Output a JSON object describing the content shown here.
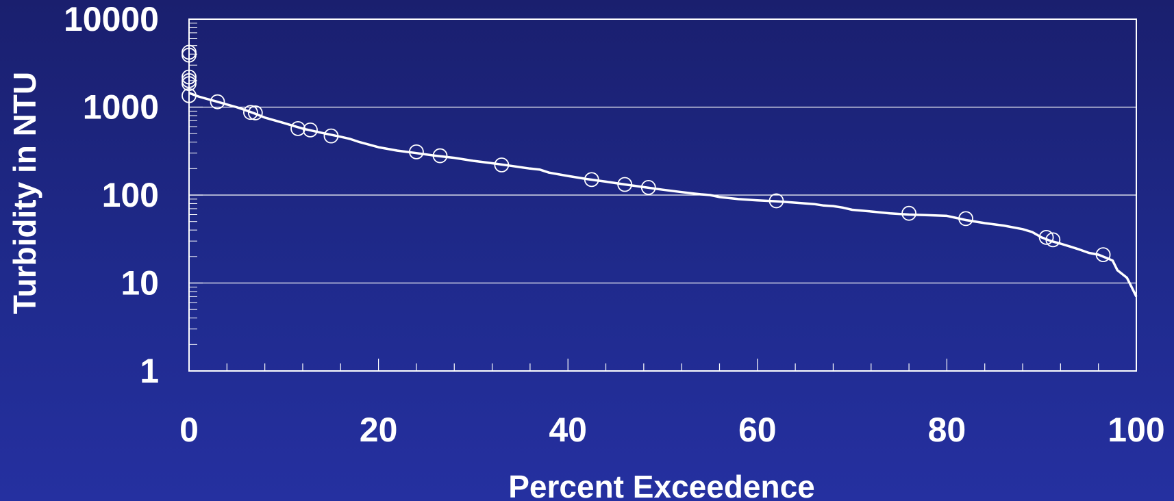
{
  "chart_data": {
    "type": "line",
    "xlabel": "Percent Exceedence",
    "ylabel": "Turbidity in NTU",
    "xlim": [
      0,
      100
    ],
    "ylim": [
      1,
      10000
    ],
    "y_scale": "log",
    "grid": "horizontal major lines",
    "colors": {
      "foreground": "#ffffff"
    },
    "x_ticks": [
      {
        "value": 0,
        "label": "0"
      },
      {
        "value": 20,
        "label": "20"
      },
      {
        "value": 40,
        "label": "40"
      },
      {
        "value": 60,
        "label": "60"
      },
      {
        "value": 80,
        "label": "80"
      },
      {
        "value": 100,
        "label": "100"
      }
    ],
    "y_ticks": [
      {
        "value": 1,
        "label": "1"
      },
      {
        "value": 10,
        "label": "10"
      },
      {
        "value": 100,
        "label": "100"
      },
      {
        "value": 1000,
        "label": "1000"
      },
      {
        "value": 10000,
        "label": "10000"
      }
    ],
    "series": [
      {
        "kind": "curve",
        "points": [
          [
            0,
            1450
          ],
          [
            1,
            1320
          ],
          [
            2,
            1230
          ],
          [
            3,
            1150
          ],
          [
            4,
            1070
          ],
          [
            5,
            1000
          ],
          [
            6,
            920
          ],
          [
            7,
            840
          ],
          [
            8,
            760
          ],
          [
            10,
            660
          ],
          [
            12,
            570
          ],
          [
            14,
            510
          ],
          [
            16,
            460
          ],
          [
            17,
            435
          ],
          [
            18,
            400
          ],
          [
            20,
            350
          ],
          [
            22,
            320
          ],
          [
            24,
            300
          ],
          [
            26,
            280
          ],
          [
            28,
            265
          ],
          [
            30,
            245
          ],
          [
            32,
            230
          ],
          [
            34,
            215
          ],
          [
            36,
            200
          ],
          [
            37,
            195
          ],
          [
            38,
            180
          ],
          [
            40,
            165
          ],
          [
            42,
            152
          ],
          [
            44,
            142
          ],
          [
            46,
            132
          ],
          [
            48,
            123
          ],
          [
            50,
            115
          ],
          [
            52,
            108
          ],
          [
            54,
            102
          ],
          [
            55,
            100
          ],
          [
            56,
            95
          ],
          [
            58,
            90
          ],
          [
            60,
            87
          ],
          [
            62,
            85
          ],
          [
            64,
            82
          ],
          [
            66,
            79
          ],
          [
            67,
            76
          ],
          [
            68,
            75
          ],
          [
            69,
            72
          ],
          [
            70,
            68
          ],
          [
            72,
            65
          ],
          [
            74,
            62
          ],
          [
            76,
            60
          ],
          [
            78,
            59
          ],
          [
            80,
            58
          ],
          [
            82,
            52
          ],
          [
            84,
            48
          ],
          [
            86,
            45
          ],
          [
            88,
            41
          ],
          [
            89,
            38
          ],
          [
            90,
            33
          ],
          [
            91,
            30
          ],
          [
            92,
            28
          ],
          [
            93,
            26
          ],
          [
            94,
            24
          ],
          [
            95,
            22
          ],
          [
            96,
            21
          ],
          [
            97,
            19
          ],
          [
            97.5,
            18
          ],
          [
            98,
            14
          ],
          [
            99,
            11.5
          ],
          [
            99.5,
            9
          ],
          [
            100,
            7
          ]
        ]
      },
      {
        "kind": "observations",
        "marker": "open-circle",
        "points": [
          [
            0,
            4200
          ],
          [
            0,
            3900
          ],
          [
            0,
            2200
          ],
          [
            0,
            2000
          ],
          [
            0,
            1850
          ],
          [
            0,
            1350
          ],
          [
            3,
            1150
          ],
          [
            6.5,
            870
          ],
          [
            7,
            860
          ],
          [
            11.5,
            570
          ],
          [
            12.8,
            550
          ],
          [
            15,
            470
          ],
          [
            24,
            310
          ],
          [
            26.5,
            280
          ],
          [
            33,
            220
          ],
          [
            42.5,
            150
          ],
          [
            46,
            132
          ],
          [
            48.5,
            122
          ],
          [
            62,
            86
          ],
          [
            76,
            62
          ],
          [
            82,
            54
          ],
          [
            90.5,
            33
          ],
          [
            91.2,
            31
          ],
          [
            96.5,
            21
          ]
        ]
      }
    ]
  }
}
